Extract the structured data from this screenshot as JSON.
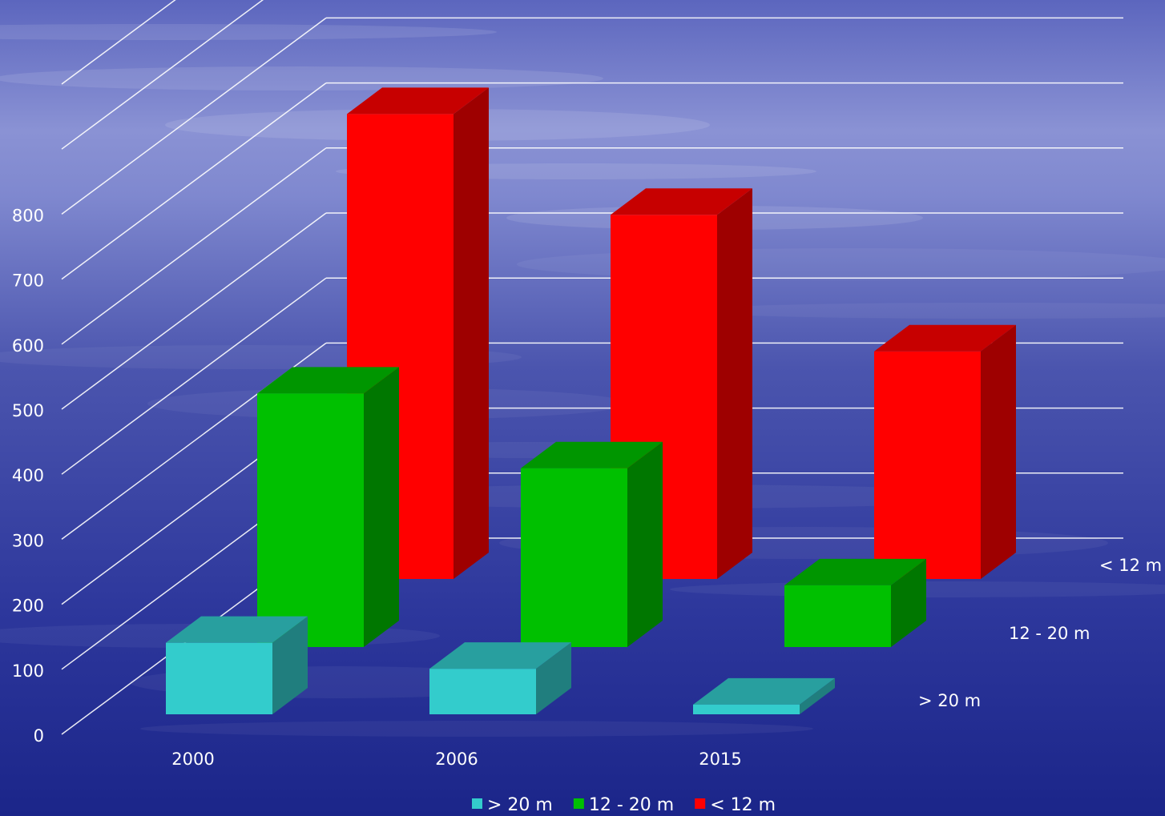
{
  "chart_data": {
    "type": "bar",
    "categories": [
      "2000",
      "2006",
      "2015"
    ],
    "series": [
      {
        "name": "> 20 m",
        "values": [
          110,
          70,
          15
        ],
        "color": "#33CCCC"
      },
      {
        "name": "12 - 20 m",
        "values": [
          390,
          275,
          95
        ],
        "color": "#00C000"
      },
      {
        "name": "< 12 m",
        "values": [
          715,
          560,
          350
        ],
        "color": "#FF0000"
      }
    ],
    "yticks": [
      "0",
      "100",
      "200",
      "300",
      "400",
      "500",
      "600",
      "700",
      "800"
    ],
    "ylim": [
      0,
      1000
    ],
    "grid": true,
    "legend_position": "bottom",
    "legend": [
      {
        "label": "> 20 m",
        "color": "#33CCCC"
      },
      {
        "label": "12 - 20 m",
        "color": "#00C000"
      },
      {
        "label": "< 12 m",
        "color": "#FF0000"
      }
    ],
    "depth_labels": [
      "> 20 m",
      "12 - 20 m",
      "< 12 m"
    ],
    "background": {
      "top": "#6F78C8",
      "horizon": "#8F96D6",
      "bottom": "#1E2890"
    }
  }
}
